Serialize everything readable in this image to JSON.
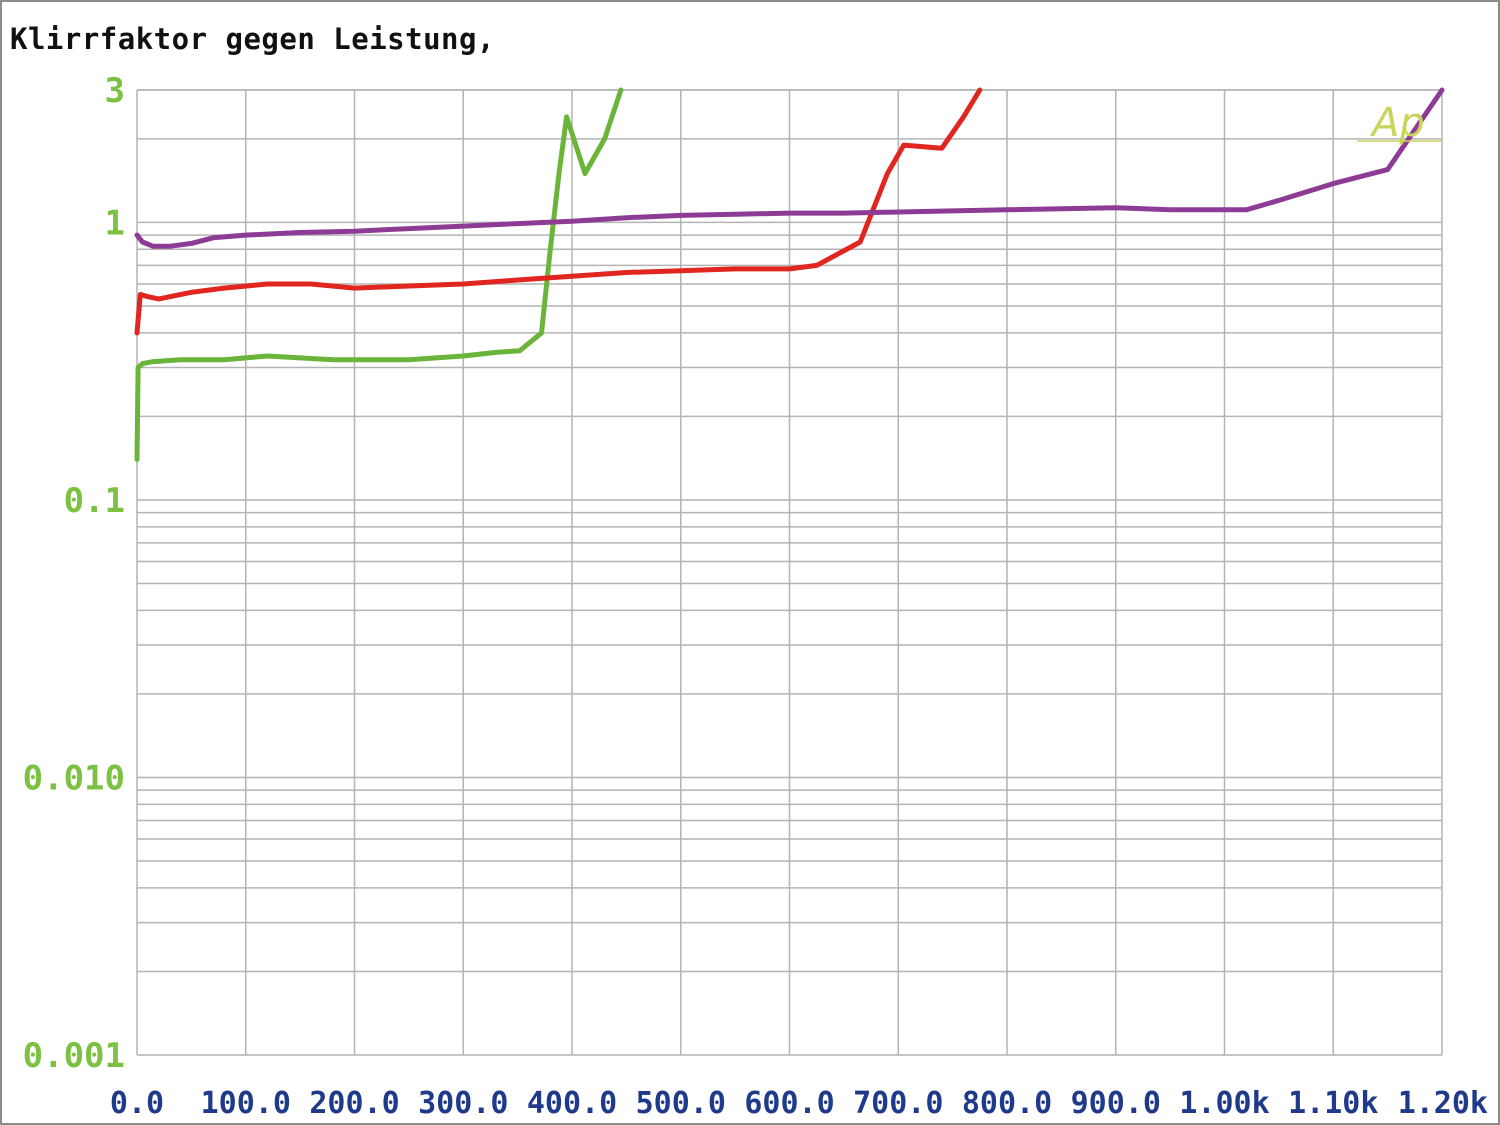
{
  "chart_data": {
    "type": "line",
    "title": "Klirrfaktor gegen Leistung,",
    "xlabel": "",
    "ylabel": "",
    "x_scale": "linear",
    "y_scale": "log",
    "xlim": [
      0,
      1200
    ],
    "ylim": [
      0.001,
      3
    ],
    "grid": true,
    "x_ticks": [
      0,
      100,
      200,
      300,
      400,
      500,
      600,
      700,
      800,
      900,
      1000,
      1100,
      1200
    ],
    "x_tick_labels": [
      "0.0",
      "100.0",
      "200.0",
      "300.0",
      "400.0",
      "500.0",
      "600.0",
      "700.0",
      "800.0",
      "900.0",
      "1.00k",
      "1.10k",
      "1.20k"
    ],
    "y_ticks": [
      3,
      1,
      0.1,
      0.01,
      0.001
    ],
    "y_tick_labels": [
      "3",
      "1",
      "0.1",
      "0.010",
      "0.001"
    ],
    "corner_mark": "Ap",
    "colors": {
      "y_tick": "#7cc142",
      "x_tick": "#1f3a8a",
      "grid": "#b4b4b4",
      "corner_mark": "#c8d45a"
    },
    "series": [
      {
        "color": "#6ab43a",
        "x": [
          0,
          1,
          5,
          15,
          40,
          80,
          120,
          180,
          250,
          300,
          330,
          352,
          372,
          380,
          388,
          395,
          412,
          430,
          445
        ],
        "y": [
          0.14,
          0.3,
          0.31,
          0.315,
          0.32,
          0.32,
          0.33,
          0.32,
          0.32,
          0.33,
          0.34,
          0.345,
          0.4,
          0.8,
          1.5,
          2.4,
          1.5,
          2.0,
          3.0
        ]
      },
      {
        "color": "#e0261e",
        "x": [
          0,
          3,
          10,
          20,
          50,
          80,
          120,
          160,
          200,
          250,
          300,
          350,
          400,
          450,
          500,
          550,
          600,
          625,
          665,
          690,
          705,
          740,
          760,
          775
        ],
        "y": [
          0.4,
          0.55,
          0.54,
          0.53,
          0.56,
          0.58,
          0.6,
          0.6,
          0.58,
          0.59,
          0.6,
          0.62,
          0.64,
          0.66,
          0.67,
          0.68,
          0.68,
          0.7,
          0.85,
          1.5,
          1.9,
          1.85,
          2.4,
          3.0
        ]
      },
      {
        "color": "#8e3b96",
        "x": [
          0,
          5,
          15,
          30,
          50,
          70,
          100,
          150,
          200,
          250,
          300,
          350,
          400,
          450,
          500,
          550,
          600,
          650,
          700,
          750,
          800,
          850,
          900,
          950,
          1000,
          1020,
          1050,
          1100,
          1150,
          1200
        ],
        "y": [
          0.9,
          0.85,
          0.82,
          0.82,
          0.84,
          0.88,
          0.9,
          0.92,
          0.93,
          0.95,
          0.97,
          0.99,
          1.01,
          1.04,
          1.06,
          1.07,
          1.08,
          1.08,
          1.09,
          1.1,
          1.11,
          1.12,
          1.13,
          1.11,
          1.11,
          1.11,
          1.2,
          1.38,
          1.55,
          3.0
        ]
      }
    ]
  }
}
